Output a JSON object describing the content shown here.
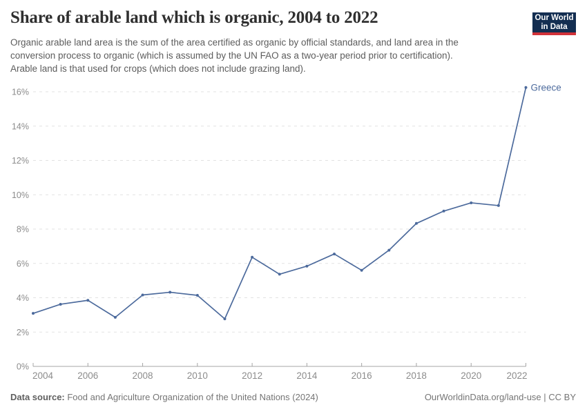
{
  "header": {
    "title": "Share of arable land which is organic, 2004 to 2022",
    "subtitle": "Organic arable land area is the sum of the area certified as organic by official standards, and land area in the\nconversion process to organic (which is assumed by the UN FAO as a two-year period prior to certification).\nArable land is that used for crops (which does not include grazing land).",
    "logo_text": "Our World\nin Data",
    "logo_bg_color": "#132e51",
    "logo_bar_color": "#d13239"
  },
  "chart_data": {
    "type": "line",
    "title": "Share of arable land which is organic, 2004 to 2022",
    "x": [
      2004,
      2005,
      2006,
      2007,
      2008,
      2009,
      2010,
      2011,
      2012,
      2013,
      2014,
      2015,
      2016,
      2017,
      2018,
      2019,
      2020,
      2021,
      2022
    ],
    "series": [
      {
        "name": "Greece",
        "color": "#4c6a9c",
        "values": [
          3.09,
          3.62,
          3.85,
          2.86,
          4.16,
          4.32,
          4.14,
          2.77,
          6.36,
          5.37,
          5.84,
          6.55,
          5.6,
          6.77,
          8.33,
          9.05,
          9.53,
          9.37,
          16.25
        ]
      }
    ],
    "xlabel": "",
    "ylabel": "",
    "xlim": [
      2004,
      2022
    ],
    "ylim": [
      0,
      16
    ],
    "y_ticks": [
      0,
      2,
      4,
      6,
      8,
      10,
      12,
      14,
      16
    ],
    "y_tick_suffix": "%",
    "x_ticks": [
      2004,
      2006,
      2008,
      2010,
      2012,
      2014,
      2016,
      2018,
      2020,
      2022
    ],
    "grid": "horizontal-dashed",
    "legend_position": "end-of-line-label",
    "grid_color": "#e2e2e2",
    "axis_color": "#a4a4a4",
    "tick_label_color": "#8c8c8c"
  },
  "footer": {
    "datasource_label": "Data source:",
    "datasource_value": " Food and Agriculture Organization of the United Nations (2024)",
    "url": "OurWorldinData.org/land-use",
    "separator": " | ",
    "license": "CC BY"
  }
}
